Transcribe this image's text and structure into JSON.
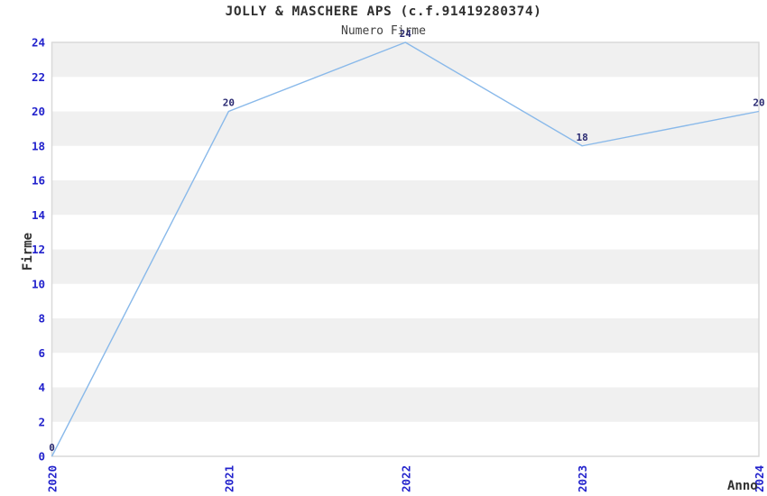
{
  "chart": {
    "title": "JOLLY & MASCHERE APS (c.f.91419280374)",
    "subtitle": "Numero Firme",
    "ylabel": "Firme",
    "xlabel": "Anno"
  },
  "chart_data": {
    "type": "line",
    "title": "JOLLY & MASCHERE APS (c.f.91419280374)",
    "subtitle": "Numero Firme",
    "xlabel": "Anno",
    "ylabel": "Firme",
    "x": [
      2020,
      2021,
      2022,
      2023,
      2024
    ],
    "values": [
      0,
      20,
      24,
      18,
      20
    ],
    "point_labels": [
      "0",
      "20",
      "24",
      "18",
      "20"
    ],
    "ylim": [
      0,
      24
    ],
    "ytick_step": 2,
    "xlim": [
      2020,
      2024
    ],
    "grid": "alternating-horizontal-bands",
    "legend": "none",
    "markers": "none",
    "colors": {
      "line": "#89b9ea",
      "tick_label": "#2222cc",
      "point_label": "#2a2a72",
      "band": "#f0f0f0",
      "plot_border": "#d9d9d9",
      "title_text": "#303030"
    }
  }
}
